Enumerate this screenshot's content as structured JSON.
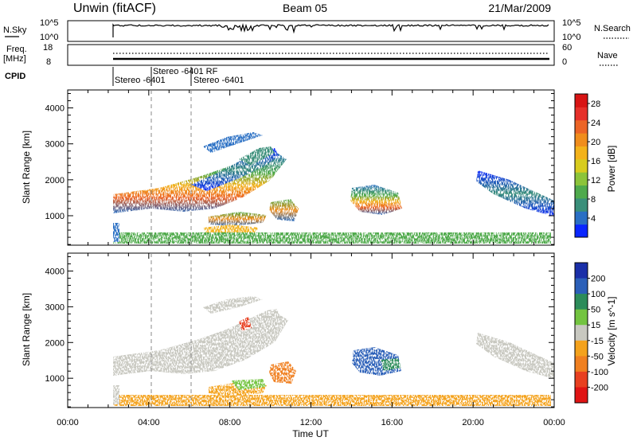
{
  "header": {
    "site": "Unwin (fitACF)",
    "beam": "Beam 05",
    "date": "21/Mar/2009"
  },
  "noise_panel": {
    "left_label": "N.Sky",
    "left_top_tick": "10^5",
    "left_bottom_tick": "10^0",
    "right_label": "N.Search",
    "right_top_tick": "10^5",
    "right_bottom_tick": "10^0"
  },
  "freq_panel": {
    "left_label_line1": "Freq.",
    "left_label_line2": "[MHz]",
    "left_top_tick": "18",
    "left_bottom_tick": "8",
    "right_label": "Nave",
    "right_top_tick": "60",
    "right_bottom_tick": "0"
  },
  "cpid": {
    "label": "CPID",
    "entries": [
      "Stereo -6401",
      "Stereo -6401 RF",
      "Stereo -6401"
    ]
  },
  "chart_data": [
    {
      "type": "heatmap",
      "title": "",
      "xlabel": "",
      "ylabel": "Slant Range [km]",
      "colorbar_label": "Power [dB]",
      "colorbar_ticks": [
        "4",
        "8",
        "12",
        "16",
        "20",
        "24",
        "28"
      ],
      "colorbar_range": [
        0,
        30
      ],
      "colorbar_colors": [
        "#0a26ff",
        "#2a6fc4",
        "#3a8f7a",
        "#4faa4c",
        "#8cc43a",
        "#d8cc1e",
        "#f3b21a",
        "#f08d1c",
        "#ec6426",
        "#e6302a",
        "#d81414"
      ],
      "x_range_hours": [
        0,
        24
      ],
      "y_range_km": [
        180,
        4500
      ],
      "y_ticks": [
        1000,
        2000,
        3000,
        4000
      ],
      "dashed_times": [
        "04:00",
        "06:00"
      ]
    },
    {
      "type": "heatmap",
      "title": "",
      "xlabel": "Time UT",
      "ylabel": "Slant Range [km]",
      "colorbar_label": "Velocity [m s^-1]",
      "colorbar_ticks": [
        "200",
        "100",
        "50",
        "15",
        "-15",
        "-50",
        "-100",
        "-200"
      ],
      "colorbar_colors": [
        "#1a2fa8",
        "#2b5fb8",
        "#2c8c5a",
        "#73c440",
        "#c8c8c0",
        "#f4a21c",
        "#f08020",
        "#e84020",
        "#e01414"
      ],
      "x_range_hours": [
        0,
        24
      ],
      "x_ticks": [
        "00:00",
        "04:00",
        "08:00",
        "12:00",
        "16:00",
        "20:00",
        "00:00"
      ],
      "y_range_km": [
        180,
        4500
      ],
      "y_ticks": [
        1000,
        2000,
        3000,
        4000
      ],
      "dashed_times": [
        "04:00",
        "06:00"
      ]
    }
  ]
}
